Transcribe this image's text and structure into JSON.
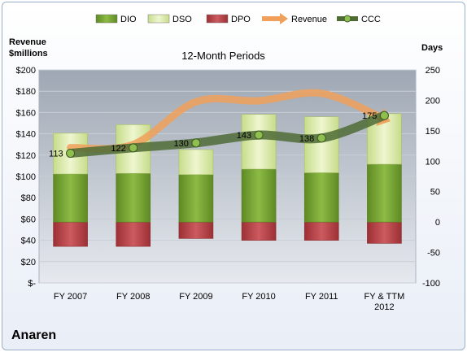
{
  "chart_data": {
    "type": "bar",
    "title": "12-Month Periods",
    "left_axis_title": [
      "Revenue",
      "$millions"
    ],
    "right_axis_title": "Days",
    "categories": [
      [
        "FY 2007"
      ],
      [
        "FY 2008"
      ],
      [
        "FY 2009"
      ],
      [
        "FY 2010"
      ],
      [
        "FY 2011"
      ],
      [
        "FY & TTM",
        "2012"
      ]
    ],
    "left_ylim": [
      0,
      200
    ],
    "left_ticks": [
      "$-",
      "$20",
      "$40",
      "$60",
      "$80",
      "$100",
      "$120",
      "$140",
      "$160",
      "$180",
      "$200"
    ],
    "right_ylim": [
      -100,
      250
    ],
    "right_ticks": [
      "-100",
      "-50",
      "0",
      "50",
      "100",
      "150",
      "200",
      "250"
    ],
    "grid": true,
    "legend_position": "top",
    "series": [
      {
        "name": "DIO",
        "type": "stacked-bar",
        "axis": "days",
        "color": "#78a435",
        "values": [
          79,
          80,
          78,
          87,
          81,
          95
        ]
      },
      {
        "name": "DSO",
        "type": "stacked-bar",
        "axis": "days",
        "color": "#d8e7a8",
        "values": [
          67,
          80,
          41,
          90,
          92,
          83
        ]
      },
      {
        "name": "DPO",
        "type": "negative-bar",
        "axis": "days",
        "color": "#b94449",
        "values": [
          -40,
          -40,
          -27,
          -30,
          -30,
          -35
        ]
      },
      {
        "name": "Revenue",
        "type": "line",
        "axis": "revenue",
        "color": "#f0a05a",
        "values": [
          127,
          130,
          170,
          171,
          178,
          154
        ]
      },
      {
        "name": "CCC",
        "type": "line",
        "axis": "days",
        "color": "#4f6b36",
        "values": [
          113,
          122,
          130,
          143,
          138,
          175
        ]
      }
    ],
    "data_labels": [
      "113",
      "122",
      "130",
      "143",
      "138",
      "175"
    ]
  },
  "company_name": "Anaren"
}
